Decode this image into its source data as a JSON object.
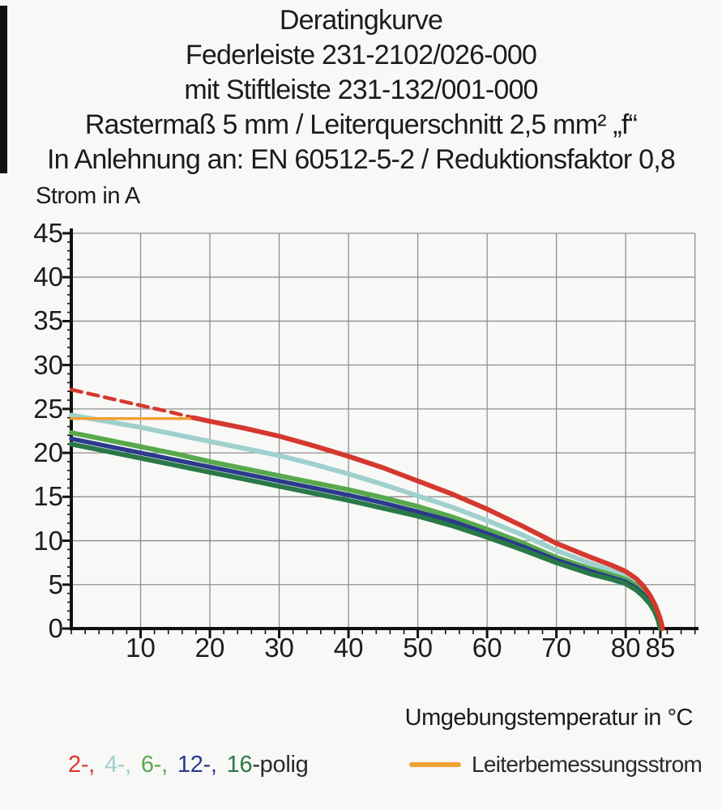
{
  "title": {
    "lines": [
      "Deratingkurve",
      "Federleiste 231-2102/026-000",
      "mit Stiftleiste 231-132/001-000",
      "Rastermaß 5 mm / Leiterquerschnitt 2,5 mm² „f“",
      "In Anlehnung an: EN 60512-5-2 / Reduktionsfaktor 0,8"
    ]
  },
  "y_axis": {
    "label": "Strom in A",
    "tick_labels": [
      45,
      40,
      35,
      30,
      25,
      20,
      15,
      10,
      5,
      0
    ],
    "major_step": 5,
    "minor_step": 1
  },
  "x_axis": {
    "label": "Umgebungstemperatur in °C",
    "tick_labels": [
      10,
      20,
      30,
      40,
      50,
      60,
      70,
      80,
      85
    ],
    "major_step": 10,
    "minor_step": 2
  },
  "legend": {
    "poles": [
      {
        "label": "2-,",
        "color": "#d5382e"
      },
      {
        "label": "4-,",
        "color": "#9fd0ce"
      },
      {
        "label": "6-,",
        "color": "#57a94c"
      },
      {
        "label": "12-,",
        "color": "#2b3a8c"
      },
      {
        "label": "16",
        "color": "#287947"
      }
    ],
    "poles_suffix": "-polig",
    "poles_suffix_color": "#2a2a2a",
    "rated_current": {
      "label": "Leiterbemessungsstrom",
      "color": "#f0a135"
    }
  },
  "chart_data": {
    "type": "line",
    "title": "Deratingkurve Federleiste 231-2102/026-000 mit Stiftleiste 231-132/001-000",
    "xlabel": "Umgebungstemperatur in °C",
    "ylabel": "Strom in A",
    "xlim": [
      0,
      90
    ],
    "ylim": [
      0,
      45
    ],
    "grid": true,
    "grid_color": "#8f8f8f",
    "axis_color": "#111111",
    "legend_position": "bottom",
    "series": [
      {
        "name": "4-polig",
        "color": "#9fd0ce",
        "width": 6,
        "dash": false,
        "points": [
          [
            0,
            24.3
          ],
          [
            5,
            23.6
          ],
          [
            10,
            22.9
          ],
          [
            15,
            22.1
          ],
          [
            20,
            21.3
          ],
          [
            25,
            20.5
          ],
          [
            30,
            19.7
          ],
          [
            35,
            18.7
          ],
          [
            40,
            17.6
          ],
          [
            45,
            16.4
          ],
          [
            50,
            15.1
          ],
          [
            55,
            13.8
          ],
          [
            60,
            12.3
          ],
          [
            65,
            10.7
          ],
          [
            70,
            8.9
          ],
          [
            75,
            7.4
          ],
          [
            78,
            6.6
          ],
          [
            80,
            6.0
          ],
          [
            81.5,
            5.2
          ],
          [
            82.5,
            4.5
          ],
          [
            83.5,
            3.4
          ],
          [
            84.3,
            2.3
          ],
          [
            84.8,
            1.2
          ],
          [
            85.1,
            0.4
          ],
          [
            85.15,
            0
          ]
        ]
      },
      {
        "name": "6-polig",
        "color": "#57a94c",
        "width": 6,
        "dash": false,
        "points": [
          [
            0,
            22.3
          ],
          [
            5,
            21.5
          ],
          [
            10,
            20.7
          ],
          [
            15,
            19.9
          ],
          [
            20,
            19.0
          ],
          [
            25,
            18.2
          ],
          [
            30,
            17.4
          ],
          [
            35,
            16.6
          ],
          [
            40,
            15.8
          ],
          [
            45,
            14.9
          ],
          [
            50,
            13.9
          ],
          [
            55,
            12.7
          ],
          [
            60,
            11.3
          ],
          [
            65,
            9.8
          ],
          [
            70,
            8.1
          ],
          [
            75,
            6.8
          ],
          [
            78,
            6.1
          ],
          [
            80,
            5.6
          ],
          [
            81.5,
            4.9
          ],
          [
            82.5,
            4.2
          ],
          [
            83.5,
            3.2
          ],
          [
            84.2,
            2.2
          ],
          [
            84.7,
            1.1
          ],
          [
            85,
            0.3
          ],
          [
            85.05,
            0
          ]
        ]
      },
      {
        "name": "12-polig",
        "color": "#2b3a8c",
        "width": 5.5,
        "dash": false,
        "points": [
          [
            0,
            21.6
          ],
          [
            5,
            20.8
          ],
          [
            10,
            20.0
          ],
          [
            15,
            19.2
          ],
          [
            20,
            18.4
          ],
          [
            25,
            17.6
          ],
          [
            30,
            16.8
          ],
          [
            35,
            16.0
          ],
          [
            40,
            15.2
          ],
          [
            45,
            14.3
          ],
          [
            50,
            13.3
          ],
          [
            55,
            12.2
          ],
          [
            60,
            10.8
          ],
          [
            65,
            9.4
          ],
          [
            70,
            7.8
          ],
          [
            75,
            6.5
          ],
          [
            78,
            5.8
          ],
          [
            80,
            5.3
          ],
          [
            81.5,
            4.6
          ],
          [
            82.5,
            3.9
          ],
          [
            83.5,
            3.0
          ],
          [
            84.2,
            2.0
          ],
          [
            84.7,
            1.0
          ],
          [
            84.95,
            0.2
          ],
          [
            85,
            0
          ]
        ]
      },
      {
        "name": "16-polig",
        "color": "#287947",
        "width": 6,
        "dash": false,
        "points": [
          [
            0,
            21.0
          ],
          [
            5,
            20.2
          ],
          [
            10,
            19.4
          ],
          [
            15,
            18.6
          ],
          [
            20,
            17.8
          ],
          [
            25,
            17.0
          ],
          [
            30,
            16.2
          ],
          [
            35,
            15.4
          ],
          [
            40,
            14.6
          ],
          [
            45,
            13.7
          ],
          [
            50,
            12.8
          ],
          [
            55,
            11.7
          ],
          [
            60,
            10.4
          ],
          [
            65,
            9.0
          ],
          [
            70,
            7.5
          ],
          [
            75,
            6.2
          ],
          [
            78,
            5.6
          ],
          [
            80,
            5.1
          ],
          [
            81.5,
            4.4
          ],
          [
            82.5,
            3.7
          ],
          [
            83.5,
            2.8
          ],
          [
            84.2,
            1.9
          ],
          [
            84.7,
            0.9
          ],
          [
            84.9,
            0.2
          ],
          [
            84.95,
            0
          ]
        ]
      },
      {
        "name": "2-polig gestrichelt (Extrapolation)",
        "color": "#d5382e",
        "width": 4.5,
        "dash": true,
        "points": [
          [
            0,
            27.2
          ],
          [
            5,
            26.3
          ],
          [
            10,
            25.4
          ],
          [
            14,
            24.7
          ],
          [
            17.6,
            24.0
          ]
        ]
      },
      {
        "name": "Leiterbemessungsstrom",
        "color": "#f0a135",
        "width": 3.5,
        "dash": false,
        "points": [
          [
            0,
            23.9
          ],
          [
            17.6,
            23.9
          ]
        ]
      },
      {
        "name": "2-polig",
        "color": "#d5382e",
        "width": 6,
        "dash": false,
        "points": [
          [
            17.6,
            24.0
          ],
          [
            20,
            23.6
          ],
          [
            25,
            22.8
          ],
          [
            30,
            21.9
          ],
          [
            35,
            20.8
          ],
          [
            40,
            19.6
          ],
          [
            45,
            18.3
          ],
          [
            50,
            16.8
          ],
          [
            55,
            15.3
          ],
          [
            60,
            13.6
          ],
          [
            65,
            11.7
          ],
          [
            70,
            9.7
          ],
          [
            75,
            8.1
          ],
          [
            78,
            7.2
          ],
          [
            80,
            6.5
          ],
          [
            81.5,
            5.7
          ],
          [
            82.5,
            4.9
          ],
          [
            83.5,
            3.8
          ],
          [
            84.3,
            2.6
          ],
          [
            84.9,
            1.3
          ],
          [
            85.2,
            0.5
          ],
          [
            85.3,
            0
          ]
        ]
      }
    ]
  }
}
